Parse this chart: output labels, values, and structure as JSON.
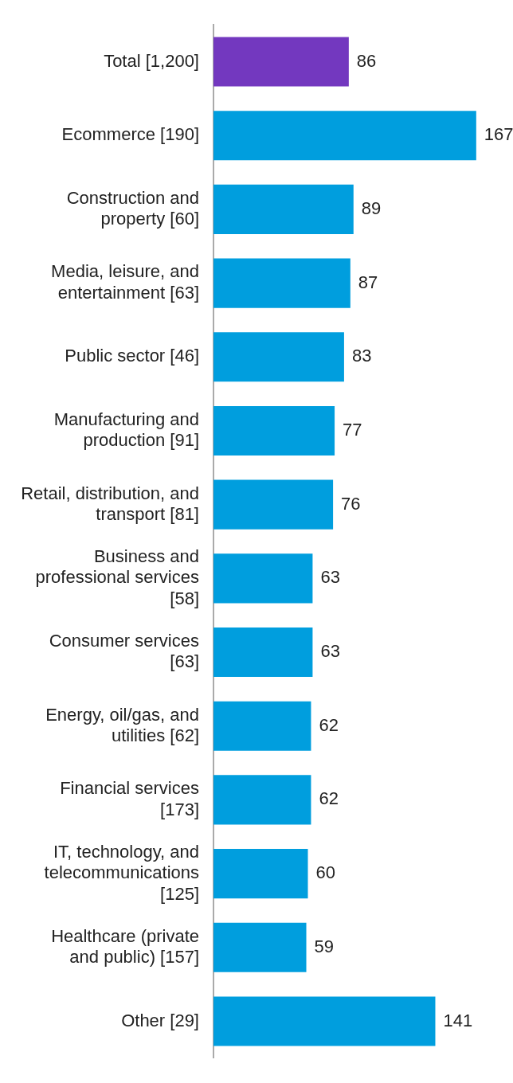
{
  "chart_data": {
    "type": "bar",
    "orientation": "horizontal",
    "tick_labels": "y",
    "categories": [
      "Total [1,200]",
      "Ecommerce [190]",
      "Construction and property [60]",
      "Media, leisure, and entertainment [63]",
      "Public sector [46]",
      "Manufacturing and production [91]",
      "Retail, distribution, and transport [81]",
      "Business and professional services [58]",
      "Consumer services [63]",
      "Energy, oil/gas, and utilities [62]",
      "Financial services [173]",
      "IT, technology, and telecommunications [125]",
      "Healthcare (private and public) [157]",
      "Other [29]"
    ],
    "values": [
      86,
      167,
      89,
      87,
      83,
      77,
      76,
      63,
      63,
      62,
      62,
      60,
      59,
      141
    ],
    "colors": [
      "#7338bf",
      "#009ede",
      "#009ede",
      "#009ede",
      "#009ede",
      "#009ede",
      "#009ede",
      "#009ede",
      "#009ede",
      "#009ede",
      "#009ede",
      "#009ede",
      "#009ede",
      "#009ede"
    ],
    "data_labels": true,
    "legend": false
  }
}
